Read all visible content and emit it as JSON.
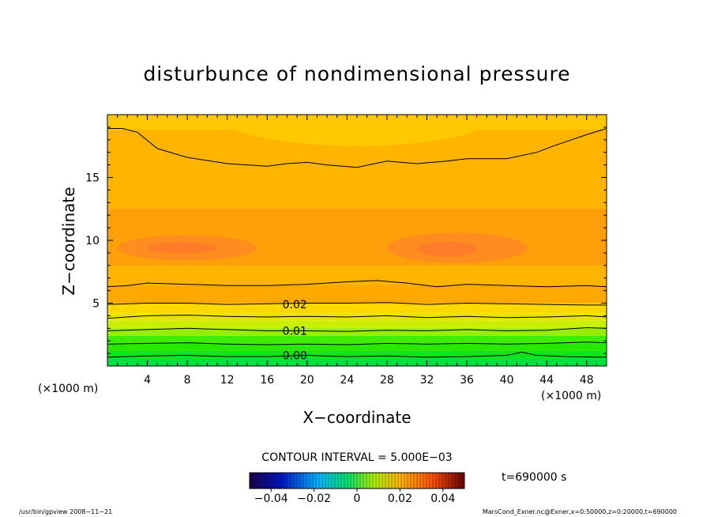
{
  "chart_data": {
    "type": "heatmap",
    "title": "disturbunce of nondimensional pressure",
    "xlabel": "X−coordinate",
    "ylabel": "Z−coordinate",
    "x_unit_left": "(×1000 m)",
    "x_unit_right": "(×1000 m)",
    "xlim": [
      0,
      50
    ],
    "ylim": [
      0,
      20
    ],
    "x_ticks": [
      4,
      8,
      12,
      16,
      20,
      24,
      28,
      32,
      36,
      40,
      44,
      48
    ],
    "y_ticks": [
      5,
      10,
      15
    ],
    "contour_interval_label": "CONTOUR INTERVAL = 5.000E−03",
    "contour_labels": [
      {
        "text": "0.02",
        "x": 17.3,
        "z": 4.9
      },
      {
        "text": "0.01",
        "x": 17.3,
        "z": 2.8
      },
      {
        "text": "0.00",
        "x": 17.3,
        "z": 0.85
      }
    ],
    "contour_lines": [
      {
        "level": "outer-top",
        "points": [
          [
            0,
            18.9
          ],
          [
            1.5,
            18.9
          ],
          [
            3,
            18.6
          ],
          [
            5,
            17.3
          ],
          [
            8,
            16.6
          ],
          [
            12,
            16.1
          ],
          [
            16,
            15.9
          ],
          [
            18,
            16.1
          ],
          [
            20,
            16.2
          ],
          [
            22,
            16.0
          ],
          [
            25,
            15.8
          ],
          [
            28,
            16.3
          ],
          [
            31,
            16.1
          ],
          [
            34,
            16.3
          ],
          [
            36,
            16.5
          ],
          [
            40,
            16.5
          ],
          [
            43,
            17.0
          ],
          [
            45,
            17.6
          ],
          [
            48,
            18.4
          ],
          [
            50,
            18.9
          ]
        ]
      },
      {
        "level": "outer-low",
        "points": [
          [
            0,
            6.3
          ],
          [
            2,
            6.4
          ],
          [
            4,
            6.6
          ],
          [
            8,
            6.5
          ],
          [
            12,
            6.4
          ],
          [
            16,
            6.4
          ],
          [
            20,
            6.5
          ],
          [
            24,
            6.7
          ],
          [
            27,
            6.8
          ],
          [
            30,
            6.6
          ],
          [
            33,
            6.3
          ],
          [
            36,
            6.5
          ],
          [
            40,
            6.4
          ],
          [
            44,
            6.3
          ],
          [
            48,
            6.4
          ],
          [
            50,
            6.3
          ]
        ]
      },
      {
        "level": "0.02",
        "points": [
          [
            0,
            4.9
          ],
          [
            4,
            5.0
          ],
          [
            8,
            5.0
          ],
          [
            12,
            4.9
          ],
          [
            16,
            4.95
          ],
          [
            20,
            5.0
          ],
          [
            24,
            5.0
          ],
          [
            28,
            5.05
          ],
          [
            32,
            4.9
          ],
          [
            36,
            5.0
          ],
          [
            40,
            4.95
          ],
          [
            44,
            4.9
          ],
          [
            48,
            4.85
          ],
          [
            50,
            4.85
          ]
        ]
      },
      {
        "level": "0.015",
        "points": [
          [
            0,
            3.8
          ],
          [
            4,
            4.0
          ],
          [
            8,
            4.05
          ],
          [
            12,
            3.95
          ],
          [
            16,
            3.9
          ],
          [
            20,
            3.95
          ],
          [
            24,
            3.9
          ],
          [
            28,
            4.0
          ],
          [
            32,
            3.85
          ],
          [
            36,
            3.95
          ],
          [
            40,
            3.85
          ],
          [
            44,
            3.9
          ],
          [
            48,
            4.0
          ],
          [
            50,
            3.9
          ]
        ]
      },
      {
        "level": "0.01",
        "points": [
          [
            0,
            2.8
          ],
          [
            4,
            2.9
          ],
          [
            8,
            3.0
          ],
          [
            12,
            2.9
          ],
          [
            16,
            2.8
          ],
          [
            20,
            2.8
          ],
          [
            24,
            2.75
          ],
          [
            28,
            2.85
          ],
          [
            32,
            2.8
          ],
          [
            36,
            2.9
          ],
          [
            40,
            2.8
          ],
          [
            44,
            2.85
          ],
          [
            48,
            3.05
          ],
          [
            50,
            3.0
          ]
        ]
      },
      {
        "level": "0.005",
        "points": [
          [
            0,
            1.75
          ],
          [
            4,
            1.8
          ],
          [
            8,
            1.85
          ],
          [
            12,
            1.75
          ],
          [
            16,
            1.7
          ],
          [
            20,
            1.75
          ],
          [
            24,
            1.7
          ],
          [
            28,
            1.8
          ],
          [
            32,
            1.75
          ],
          [
            36,
            1.8
          ],
          [
            40,
            1.75
          ],
          [
            44,
            1.8
          ],
          [
            48,
            1.9
          ],
          [
            50,
            1.85
          ]
        ]
      },
      {
        "level": "0.00",
        "points": [
          [
            0,
            0.7
          ],
          [
            4,
            0.8
          ],
          [
            8,
            0.85
          ],
          [
            12,
            0.75
          ],
          [
            16,
            0.75
          ],
          [
            20,
            0.85
          ],
          [
            24,
            0.75
          ],
          [
            28,
            0.8
          ],
          [
            32,
            0.7
          ],
          [
            36,
            0.75
          ],
          [
            40,
            0.85
          ],
          [
            41.5,
            1.1
          ],
          [
            43,
            0.85
          ],
          [
            46,
            0.75
          ],
          [
            50,
            0.7
          ]
        ]
      }
    ],
    "colorbar": {
      "min": -0.05,
      "max": 0.05,
      "ticks": [
        {
          "value": -0.04,
          "label": "−0.04"
        },
        {
          "value": -0.02,
          "label": "−0.02"
        },
        {
          "value": 0,
          "label": "0"
        },
        {
          "value": 0.02,
          "label": "0.02"
        },
        {
          "value": 0.04,
          "label": "0.04"
        }
      ]
    },
    "time_label": "t=690000 s"
  },
  "footer": {
    "left": "/usr/bin/gpview   2008−11−21",
    "right": "MarsCond_Exner.nc@Exner,x=0:50000,z=0:20000,t=690000"
  },
  "colors": {
    "band_top": "#ffc800",
    "band_upper": "#ffb400",
    "band_mid": "#ff9f0a",
    "band_core": "#ff8c1e",
    "band_low": "#ffa800",
    "green_deep": "#00e040",
    "green_mid": "#40ec00",
    "yellow_green": "#c8f000"
  }
}
